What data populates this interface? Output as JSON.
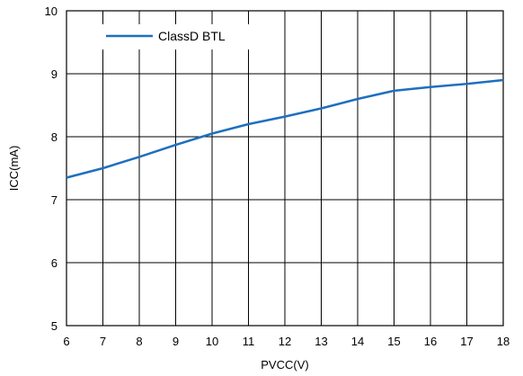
{
  "chart_data": {
    "type": "line",
    "title": "",
    "xlabel": "PVCC(V)",
    "ylabel": "ICC(mA)",
    "xlim": [
      6,
      18
    ],
    "ylim": [
      5,
      10
    ],
    "xticks": [
      6,
      7,
      8,
      9,
      10,
      11,
      12,
      13,
      14,
      15,
      16,
      17,
      18
    ],
    "yticks": [
      5,
      6,
      7,
      8,
      9,
      10
    ],
    "grid": true,
    "legend_position": "top-left",
    "series": [
      {
        "name": "ClassD BTL",
        "color": "#1f6fbf",
        "x": [
          6,
          7,
          8,
          9,
          10,
          11,
          12,
          13,
          14,
          15,
          16,
          17,
          18
        ],
        "y": [
          7.35,
          7.5,
          7.68,
          7.87,
          8.05,
          8.2,
          8.32,
          8.45,
          8.6,
          8.73,
          8.79,
          8.84,
          8.9
        ]
      }
    ]
  }
}
